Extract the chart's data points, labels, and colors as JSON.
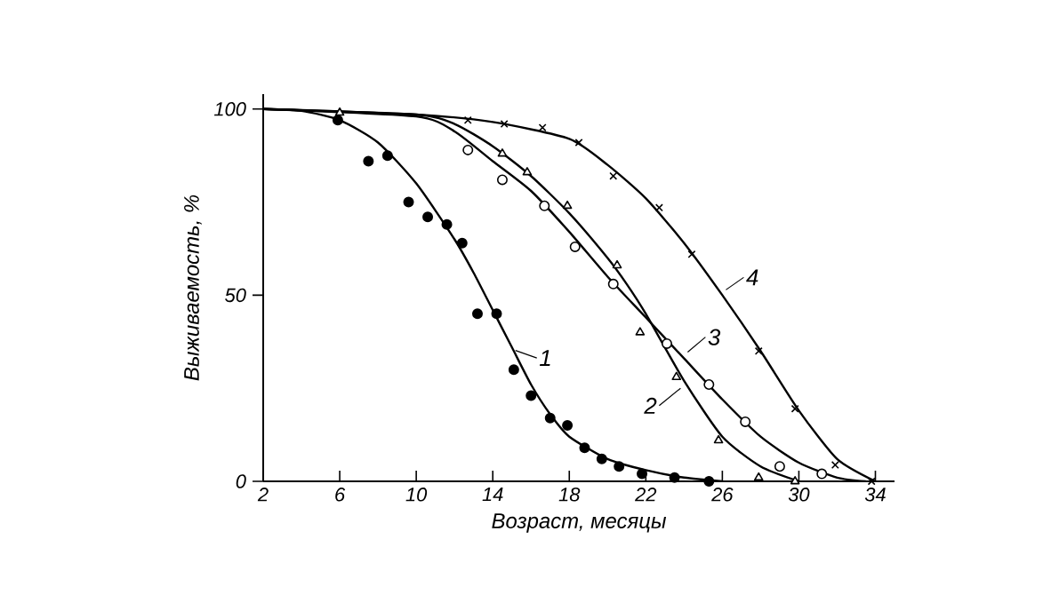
{
  "chart_data": {
    "type": "line",
    "xlabel": "Возраст, месяцы",
    "ylabel": "Выживаемость, %",
    "xlim": [
      2,
      35
    ],
    "ylim": [
      0,
      104
    ],
    "xticks": [
      2,
      6,
      10,
      14,
      18,
      22,
      26,
      30,
      34
    ],
    "yticks": [
      0,
      50,
      100
    ],
    "grid": false,
    "legend": "right",
    "series": [
      {
        "name": "1",
        "color": "#000000",
        "x": [
          2,
          4,
          6,
          8,
          10,
          12,
          13,
          14,
          15,
          16,
          17,
          18,
          20,
          22,
          24,
          26
        ],
        "values": [
          100,
          99.5,
          97,
          91,
          80,
          65,
          56,
          46,
          36,
          26,
          18,
          12,
          6,
          3,
          1,
          0
        ]
      },
      {
        "type": "scatter",
        "marker": "circle",
        "color": "#000000",
        "x": [
          5.9,
          7.5,
          8.5,
          9.6,
          10.6,
          11.6,
          12.4,
          13.2,
          14.2,
          15.1,
          16.0,
          17.0,
          17.9,
          18.8,
          19.7,
          20.6,
          21.8,
          23.5,
          25.3
        ],
        "values": [
          97,
          86,
          87.5,
          75,
          71,
          69,
          64,
          45,
          45,
          30,
          23,
          17,
          15,
          9,
          6,
          4,
          2,
          1,
          0
        ]
      },
      {
        "name": "2",
        "color": "#000000",
        "x": [
          2,
          10,
          12,
          14,
          16,
          18,
          20,
          21,
          22,
          24,
          26,
          28,
          30
        ],
        "values": [
          100,
          98.5,
          96,
          90,
          82,
          72,
          60,
          53,
          45,
          27,
          12,
          4,
          0
        ]
      },
      {
        "type": "scatter",
        "marker": "triangle",
        "color": "#ffffff",
        "x": [
          6,
          14.5,
          15.8,
          17.9,
          20.5,
          21.7,
          23.6,
          25.8,
          27.9,
          29.8
        ],
        "values": [
          99,
          88,
          83,
          74,
          58,
          40,
          28,
          11,
          1,
          0
        ]
      },
      {
        "name": "3",
        "color": "#000000",
        "x": [
          2,
          10,
          12,
          14,
          16,
          18,
          20,
          22,
          24,
          26,
          28,
          30,
          32,
          33.5
        ],
        "values": [
          100,
          98,
          94,
          86,
          78,
          67,
          55,
          44,
          33,
          22,
          12,
          5,
          1,
          0
        ]
      },
      {
        "type": "scatter",
        "marker": "circle",
        "color": "#ffffff",
        "x": [
          12.7,
          14.5,
          16.7,
          18.3,
          20.3,
          23.1,
          25.3,
          27.2,
          29.0,
          31.2
        ],
        "values": [
          89,
          81,
          74,
          63,
          53,
          37,
          26,
          16,
          4,
          2
        ]
      },
      {
        "name": "4",
        "color": "#000000",
        "x": [
          2,
          10,
          14,
          18,
          20,
          22,
          24,
          26,
          28,
          30,
          32,
          34
        ],
        "values": [
          100,
          98.5,
          96.5,
          92,
          85,
          76,
          64,
          50,
          35,
          19,
          6,
          0
        ]
      },
      {
        "type": "scatter",
        "marker": "cross",
        "color": "#000000",
        "x": [
          12.7,
          14.6,
          16.6,
          18.5,
          20.3,
          22.7,
          24.4,
          27.9,
          29.8,
          31.9,
          33.8
        ],
        "values": [
          97,
          96,
          95,
          91,
          82,
          73.5,
          61,
          35,
          19.5,
          4.4,
          0
        ]
      }
    ]
  }
}
